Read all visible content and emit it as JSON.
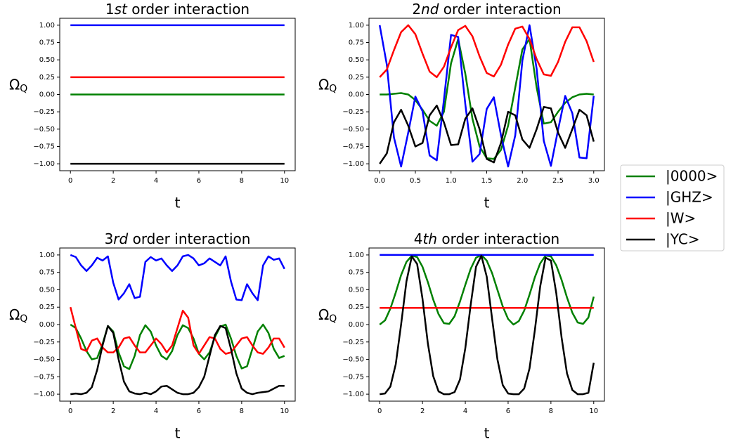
{
  "chart_data": [
    {
      "type": "line",
      "title": "1st order interaction",
      "x_label": "t",
      "y_label": "ΩQ",
      "x": [
        0,
        10
      ],
      "series": [
        {
          "name": "|0000>",
          "color": "#008000",
          "values": [
            0,
            0
          ]
        },
        {
          "name": "|GHZ>",
          "color": "#0000ff",
          "values": [
            1,
            1
          ]
        },
        {
          "name": "|W>",
          "color": "#ff0000",
          "values": [
            0.25,
            0.25
          ]
        },
        {
          "name": "|YC>",
          "color": "#000000",
          "values": [
            -1,
            -1
          ]
        }
      ],
      "xlim": [
        -0.5,
        10.5
      ],
      "ylim": [
        -1.1,
        1.1
      ],
      "xticks": [
        0,
        2,
        4,
        6,
        8,
        10
      ],
      "yticks": [
        {
          "value": -1,
          "label": "−1.00"
        },
        {
          "value": -0.75,
          "label": "−0.75"
        },
        {
          "value": -0.5,
          "label": "−0.50"
        },
        {
          "value": -0.25,
          "label": "−0.25"
        },
        {
          "value": 0,
          "label": "0.00"
        },
        {
          "value": 0.25,
          "label": "0.25"
        },
        {
          "value": 0.5,
          "label": "0.50"
        },
        {
          "value": 0.75,
          "label": "0.75"
        },
        {
          "value": 1,
          "label": "1.00"
        }
      ],
      "grid": false
    },
    {
      "type": "line",
      "title": "2nd order interaction",
      "x_label": "t",
      "y_label": "ΩQ",
      "x": [
        0,
        0.1,
        0.2,
        0.3,
        0.4,
        0.5,
        0.6,
        0.7,
        0.8,
        0.9,
        1.0,
        1.1,
        1.2,
        1.3,
        1.4,
        1.5,
        1.6,
        1.7,
        1.8,
        1.9,
        2.0,
        2.1,
        2.2,
        2.3,
        2.4,
        2.5,
        2.6,
        2.7,
        2.8,
        2.9,
        3.0
      ],
      "series": [
        {
          "name": "|0000>",
          "color": "#008000",
          "values": [
            0,
            0,
            0.01,
            0.02,
            0,
            -0.08,
            -0.22,
            -0.38,
            -0.45,
            -0.25,
            0.45,
            0.8,
            0.3,
            -0.35,
            -0.75,
            -0.92,
            -0.93,
            -0.8,
            -0.45,
            0.1,
            0.65,
            0.8,
            0.1,
            -0.42,
            -0.4,
            -0.25,
            -0.12,
            -0.04,
            0,
            0.01,
            0
          ]
        },
        {
          "name": "|GHZ>",
          "color": "#0000ff",
          "values": [
            1,
            0.43,
            -0.62,
            -1.04,
            -0.55,
            -0.03,
            -0.24,
            -0.88,
            -0.95,
            -0.08,
            0.86,
            0.83,
            -0.14,
            -0.97,
            -0.86,
            -0.21,
            -0.04,
            -0.59,
            -1.04,
            -0.59,
            0.49,
            1.0,
            0.37,
            -0.67,
            -1.03,
            -0.51,
            -0.02,
            -0.27,
            -0.91,
            -0.92,
            -0.02
          ]
        },
        {
          "name": "|W>",
          "color": "#ff0000",
          "values": [
            0.25,
            0.36,
            0.64,
            0.9,
            1.0,
            0.87,
            0.59,
            0.33,
            0.25,
            0.4,
            0.68,
            0.93,
            0.99,
            0.84,
            0.55,
            0.31,
            0.26,
            0.43,
            0.72,
            0.95,
            0.98,
            0.8,
            0.51,
            0.29,
            0.27,
            0.47,
            0.76,
            0.97,
            0.97,
            0.77,
            0.47
          ]
        },
        {
          "name": "|YC>",
          "color": "#000000",
          "values": [
            -1,
            -0.85,
            -0.4,
            -0.22,
            -0.45,
            -0.75,
            -0.7,
            -0.3,
            -0.16,
            -0.4,
            -0.73,
            -0.72,
            -0.35,
            -0.2,
            -0.5,
            -0.93,
            -0.98,
            -0.7,
            -0.25,
            -0.3,
            -0.65,
            -0.77,
            -0.5,
            -0.18,
            -0.2,
            -0.55,
            -0.77,
            -0.5,
            -0.22,
            -0.3,
            -0.68
          ]
        }
      ],
      "xlim": [
        -0.15,
        3.15
      ],
      "ylim": [
        -1.1,
        1.1
      ],
      "xticks": [
        {
          "value": 0,
          "label": "0.0"
        },
        0.5,
        {
          "value": 1,
          "label": "1.0"
        },
        1.5,
        {
          "value": 2,
          "label": "2.0"
        },
        2.5,
        {
          "value": 3,
          "label": "3.0"
        }
      ],
      "yticks": [
        {
          "value": -1,
          "label": "−1.00"
        },
        {
          "value": -0.75,
          "label": "−0.75"
        },
        {
          "value": -0.5,
          "label": "−0.50"
        },
        {
          "value": -0.25,
          "label": "−0.25"
        },
        {
          "value": 0,
          "label": "0.00"
        },
        {
          "value": 0.25,
          "label": "0.25"
        },
        {
          "value": 0.5,
          "label": "0.50"
        },
        {
          "value": 0.75,
          "label": "0.75"
        },
        {
          "value": 1,
          "label": "1.00"
        }
      ],
      "grid": false
    },
    {
      "type": "line",
      "title": "3rd order interaction",
      "x_label": "t",
      "y_label": "ΩQ",
      "x": [
        0,
        0.25,
        0.5,
        0.75,
        1.0,
        1.25,
        1.5,
        1.75,
        2.0,
        2.25,
        2.5,
        2.75,
        3.0,
        3.25,
        3.5,
        3.75,
        4.0,
        4.25,
        4.5,
        4.75,
        5.0,
        5.25,
        5.5,
        5.75,
        6.0,
        6.25,
        6.5,
        6.75,
        7.0,
        7.25,
        7.5,
        7.75,
        8.0,
        8.25,
        8.5,
        8.75,
        9.0,
        9.25,
        9.5,
        9.75,
        10.0
      ],
      "series": [
        {
          "name": "|0000>",
          "color": "#008000",
          "values": [
            0,
            -0.05,
            -0.2,
            -0.38,
            -0.5,
            -0.48,
            -0.28,
            -0.02,
            -0.1,
            -0.4,
            -0.6,
            -0.64,
            -0.45,
            -0.15,
            -0.01,
            -0.1,
            -0.3,
            -0.45,
            -0.5,
            -0.38,
            -0.15,
            -0.01,
            -0.05,
            -0.2,
            -0.42,
            -0.5,
            -0.4,
            -0.18,
            -0.03,
            0,
            -0.2,
            -0.45,
            -0.63,
            -0.6,
            -0.35,
            -0.1,
            0,
            -0.12,
            -0.35,
            -0.48,
            -0.45
          ]
        },
        {
          "name": "|GHZ>",
          "color": "#0000ff",
          "values": [
            1.0,
            0.97,
            0.85,
            0.77,
            0.85,
            0.96,
            0.92,
            0.98,
            0.6,
            0.36,
            0.45,
            0.58,
            0.38,
            0.4,
            0.9,
            0.97,
            0.92,
            0.95,
            0.85,
            0.77,
            0.85,
            0.98,
            1.0,
            0.95,
            0.85,
            0.88,
            0.95,
            0.9,
            0.85,
            0.98,
            0.62,
            0.36,
            0.35,
            0.58,
            0.45,
            0.35,
            0.85,
            0.98,
            0.93,
            0.95,
            0.8
          ]
        },
        {
          "name": "|W>",
          "color": "#ff0000",
          "values": [
            0.25,
            -0.05,
            -0.35,
            -0.38,
            -0.23,
            -0.2,
            -0.33,
            -0.4,
            -0.4,
            -0.33,
            -0.2,
            -0.18,
            -0.3,
            -0.4,
            -0.4,
            -0.3,
            -0.2,
            -0.28,
            -0.4,
            -0.3,
            -0.05,
            0.2,
            0.1,
            -0.3,
            -0.42,
            -0.3,
            -0.18,
            -0.2,
            -0.35,
            -0.42,
            -0.4,
            -0.3,
            -0.2,
            -0.18,
            -0.3,
            -0.4,
            -0.42,
            -0.33,
            -0.2,
            -0.2,
            -0.33
          ]
        },
        {
          "name": "|YC>",
          "color": "#000000",
          "values": [
            -1,
            -0.99,
            -1.0,
            -0.98,
            -0.9,
            -0.65,
            -0.3,
            -0.02,
            -0.12,
            -0.5,
            -0.82,
            -0.96,
            -0.99,
            -1.0,
            -0.98,
            -1.0,
            -0.96,
            -0.89,
            -0.88,
            -0.93,
            -0.98,
            -1.0,
            -1.0,
            -0.98,
            -0.9,
            -0.75,
            -0.45,
            -0.15,
            -0.02,
            -0.05,
            -0.35,
            -0.7,
            -0.92,
            -0.98,
            -1.0,
            -0.98,
            -0.97,
            -0.96,
            -0.92,
            -0.88,
            -0.88
          ]
        }
      ],
      "xlim": [
        -0.5,
        10.5
      ],
      "ylim": [
        -1.1,
        1.1
      ],
      "xticks": [
        0,
        2,
        4,
        6,
        8,
        10
      ],
      "yticks": [
        {
          "value": -1,
          "label": "−1.00"
        },
        {
          "value": -0.75,
          "label": "−0.75"
        },
        {
          "value": -0.5,
          "label": "−0.50"
        },
        {
          "value": -0.25,
          "label": "−0.25"
        },
        {
          "value": 0,
          "label": "0.00"
        },
        {
          "value": 0.25,
          "label": "0.25"
        },
        {
          "value": 0.5,
          "label": "0.50"
        },
        {
          "value": 0.75,
          "label": "0.75"
        },
        {
          "value": 1,
          "label": "1.00"
        }
      ],
      "grid": false
    },
    {
      "type": "line",
      "title": "4th order interaction",
      "x_label": "t",
      "y_label": "ΩQ",
      "x": [
        0,
        0.25,
        0.5,
        0.75,
        1.0,
        1.25,
        1.5,
        1.75,
        2.0,
        2.25,
        2.5,
        2.75,
        3.0,
        3.25,
        3.5,
        3.75,
        4.0,
        4.25,
        4.5,
        4.75,
        5.0,
        5.25,
        5.5,
        5.75,
        6.0,
        6.25,
        6.5,
        6.75,
        7.0,
        7.25,
        7.5,
        7.75,
        8.0,
        8.25,
        8.5,
        8.75,
        9.0,
        9.25,
        9.5,
        9.75,
        10.0
      ],
      "series": [
        {
          "name": "|0000>",
          "color": "#008000",
          "values": [
            0,
            0.06,
            0.23,
            0.46,
            0.71,
            0.9,
            0.99,
            0.97,
            0.83,
            0.61,
            0.36,
            0.15,
            0.02,
            0.01,
            0.12,
            0.33,
            0.57,
            0.8,
            0.96,
            1,
            0.92,
            0.74,
            0.5,
            0.26,
            0.08,
            0,
            0.05,
            0.2,
            0.43,
            0.68,
            0.88,
            0.99,
            0.98,
            0.85,
            0.64,
            0.39,
            0.17,
            0.03,
            0.01,
            0.1,
            0.4
          ]
        },
        {
          "name": "|GHZ>",
          "color": "#0000ff",
          "values": [
            1,
            1,
            1,
            1,
            1,
            1,
            1,
            1,
            1,
            1,
            1,
            1,
            1,
            1,
            1,
            1,
            1,
            1,
            1,
            1,
            1,
            1,
            1,
            1,
            1,
            1,
            1,
            1,
            1,
            1,
            1,
            1,
            1,
            1,
            1,
            1,
            1,
            1,
            1,
            1,
            1
          ]
        },
        {
          "name": "|W>",
          "color": "#ff0000",
          "values": [
            0.24,
            0.24,
            0.24,
            0.24,
            0.24,
            0.24,
            0.24,
            0.24,
            0.24,
            0.24,
            0.24,
            0.24,
            0.24,
            0.24,
            0.24,
            0.24,
            0.24,
            0.24,
            0.24,
            0.24,
            0.24,
            0.24,
            0.24,
            0.24,
            0.24,
            0.24,
            0.24,
            0.24,
            0.24,
            0.24,
            0.24,
            0.24,
            0.24,
            0.24,
            0.24,
            0.24,
            0.24,
            0.24,
            0.24,
            0.24,
            0.24
          ]
        },
        {
          "name": "|YC>",
          "color": "#000000",
          "values": [
            -1,
            -0.99,
            -0.89,
            -0.57,
            0.0,
            0.62,
            0.98,
            0.87,
            0.37,
            -0.27,
            -0.74,
            -0.96,
            -1,
            -1,
            -0.97,
            -0.79,
            -0.34,
            0.28,
            0.83,
            0.99,
            0.69,
            0.09,
            -0.5,
            -0.87,
            -0.99,
            -1,
            -1,
            -0.92,
            -0.63,
            -0.08,
            0.55,
            0.96,
            0.92,
            0.45,
            -0.19,
            -0.7,
            -0.94,
            -1,
            -1,
            -0.98,
            -0.55
          ]
        }
      ],
      "xlim": [
        -0.5,
        10.5
      ],
      "ylim": [
        -1.1,
        1.1
      ],
      "xticks": [
        0,
        2,
        4,
        6,
        8,
        10
      ],
      "yticks": [
        {
          "value": -1,
          "label": "−1.00"
        },
        {
          "value": -0.75,
          "label": "−0.75"
        },
        {
          "value": -0.5,
          "label": "−0.50"
        },
        {
          "value": -0.25,
          "label": "−0.25"
        },
        {
          "value": 0,
          "label": "0.00"
        },
        {
          "value": 0.25,
          "label": "0.25"
        },
        {
          "value": 0.5,
          "label": "0.50"
        },
        {
          "value": 0.75,
          "label": "0.75"
        },
        {
          "value": 1,
          "label": "1.00"
        }
      ],
      "grid": false
    }
  ]
}
